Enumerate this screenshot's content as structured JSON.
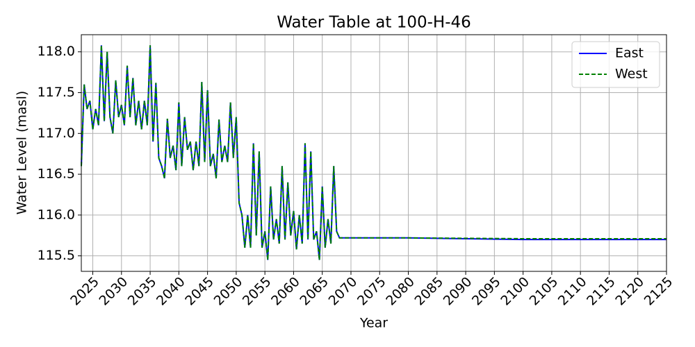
{
  "chart_data": {
    "type": "line",
    "title": "Water Table at 100-H-46",
    "x_label": "Year",
    "y_label": "Water Level (masl)",
    "x": [
      2023,
      2023.5,
      2024,
      2024.5,
      2025,
      2025.5,
      2026,
      2026.5,
      2027,
      2027.5,
      2028,
      2028.5,
      2029,
      2029.5,
      2030,
      2030.5,
      2031,
      2031.5,
      2032,
      2032.5,
      2033,
      2033.5,
      2034,
      2034.5,
      2035,
      2035.5,
      2036,
      2036.5,
      2037,
      2037.5,
      2038,
      2038.5,
      2039,
      2039.5,
      2040,
      2040.5,
      2041,
      2041.5,
      2042,
      2042.5,
      2043,
      2043.5,
      2044,
      2044.5,
      2045,
      2045.5,
      2046,
      2046.5,
      2047,
      2047.5,
      2048,
      2048.5,
      2049,
      2049.5,
      2050,
      2050.5,
      2051,
      2051.5,
      2052,
      2052.5,
      2053,
      2053.5,
      2054,
      2054.5,
      2055,
      2055.5,
      2056,
      2056.5,
      2057,
      2057.5,
      2058,
      2058.5,
      2059,
      2059.5,
      2060,
      2060.5,
      2061,
      2061.5,
      2062,
      2062.5,
      2063,
      2063.5,
      2064,
      2064.5,
      2065,
      2065.5,
      2066,
      2066.5,
      2067,
      2067.5,
      2068,
      2080,
      2100,
      2125
    ],
    "series": [
      {
        "name": "East",
        "color": "#0000ff",
        "linestyle": "solid",
        "values": [
          116.6,
          117.6,
          117.3,
          117.4,
          117.05,
          117.3,
          117.1,
          118.08,
          117.15,
          118.0,
          117.2,
          117.0,
          117.65,
          117.2,
          117.35,
          117.1,
          117.83,
          117.2,
          117.68,
          117.1,
          117.4,
          117.05,
          117.4,
          117.1,
          118.08,
          116.9,
          117.62,
          116.7,
          116.6,
          116.45,
          117.18,
          116.7,
          116.85,
          116.55,
          117.38,
          116.6,
          117.2,
          116.8,
          116.9,
          116.55,
          116.9,
          116.6,
          117.63,
          116.65,
          117.53,
          116.6,
          116.75,
          116.45,
          117.17,
          116.65,
          116.85,
          116.65,
          117.38,
          116.7,
          117.2,
          116.15,
          116.0,
          115.6,
          116.0,
          115.6,
          116.88,
          115.75,
          116.78,
          115.6,
          115.8,
          115.45,
          116.35,
          115.7,
          115.95,
          115.65,
          116.6,
          115.7,
          116.4,
          115.75,
          116.05,
          115.58,
          116.0,
          115.65,
          116.88,
          115.7,
          116.78,
          115.7,
          115.8,
          115.45,
          116.35,
          115.6,
          115.95,
          115.65,
          116.6,
          115.8,
          115.72,
          115.72,
          115.7,
          115.7
        ]
      },
      {
        "name": "West",
        "color": "#008000",
        "linestyle": "dashed",
        "values": [
          116.6,
          117.6,
          117.3,
          117.4,
          117.05,
          117.3,
          117.1,
          118.08,
          117.15,
          118.0,
          117.2,
          117.0,
          117.65,
          117.2,
          117.35,
          117.1,
          117.83,
          117.2,
          117.68,
          117.1,
          117.4,
          117.05,
          117.4,
          117.1,
          118.08,
          116.9,
          117.62,
          116.7,
          116.6,
          116.45,
          117.18,
          116.7,
          116.85,
          116.55,
          117.38,
          116.6,
          117.2,
          116.8,
          116.9,
          116.55,
          116.9,
          116.6,
          117.63,
          116.65,
          117.53,
          116.6,
          116.75,
          116.45,
          117.17,
          116.65,
          116.85,
          116.65,
          117.38,
          116.7,
          117.2,
          116.15,
          116.0,
          115.6,
          116.0,
          115.6,
          116.88,
          115.75,
          116.78,
          115.6,
          115.8,
          115.45,
          116.35,
          115.7,
          115.95,
          115.65,
          116.6,
          115.7,
          116.4,
          115.75,
          116.05,
          115.58,
          116.0,
          115.65,
          116.88,
          115.7,
          116.78,
          115.7,
          115.8,
          115.45,
          116.35,
          115.6,
          115.95,
          115.65,
          116.6,
          115.8,
          115.72,
          115.72,
          115.71,
          115.71
        ]
      }
    ],
    "xlim": [
      2023,
      2125
    ],
    "ylim": [
      115.31,
      118.21
    ],
    "xticks": [
      2025,
      2030,
      2035,
      2040,
      2045,
      2050,
      2055,
      2060,
      2065,
      2070,
      2075,
      2080,
      2085,
      2090,
      2095,
      2100,
      2105,
      2110,
      2115,
      2120,
      2125
    ],
    "yticks": [
      115.5,
      {
        "value": 116,
        "label": "116.0"
      },
      116.5,
      {
        "value": 117,
        "label": "117.0"
      },
      117.5,
      {
        "value": 118,
        "label": "118.0"
      }
    ],
    "grid": true,
    "legend": "upper right"
  }
}
